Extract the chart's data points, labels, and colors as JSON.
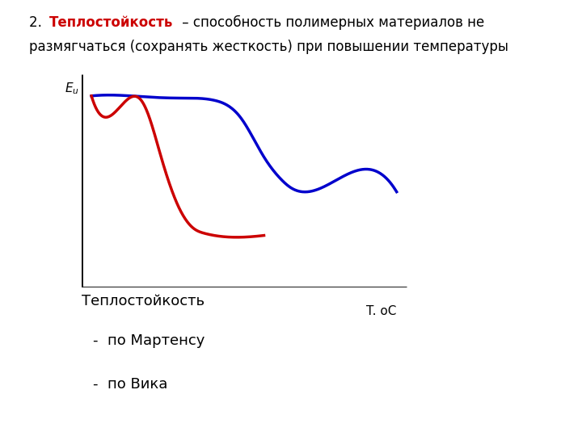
{
  "background_color": "#ffffff",
  "blue_color": "#0000cc",
  "red_color": "#cc0000",
  "axes_color": "#000000",
  "ylabel": "$E_u$",
  "xlabel": "T. оС",
  "label_below": "Теплостойкость",
  "label_marten": "-  по Мартенсу",
  "label_vika": "-  по Вика",
  "title_num": "2. ",
  "title_bold": "Теплостойкость",
  "title_line1_rest": " – способность полимерных материалов не",
  "title_line2": "размягчаться (сохранять жесткость) при повышении температуры",
  "text_fontsize": 12,
  "axis_fontsize": 11,
  "label_fontsize": 13,
  "linewidth": 2.5,
  "blue_x": [
    0.3,
    1.5,
    2.0,
    3.0,
    4.0,
    4.8,
    5.5,
    6.0,
    6.3,
    6.8,
    9.5
  ],
  "blue_y": [
    8.8,
    8.8,
    8.75,
    8.7,
    8.6,
    7.8,
    6.0,
    5.0,
    4.6,
    4.4,
    4.4
  ],
  "red_x": [
    0.3,
    1.5,
    1.8,
    2.0,
    2.4,
    2.9,
    3.4,
    3.7,
    4.0,
    5.5
  ],
  "red_y": [
    8.8,
    8.75,
    8.6,
    8.0,
    6.0,
    3.8,
    2.7,
    2.5,
    2.4,
    2.4
  ]
}
